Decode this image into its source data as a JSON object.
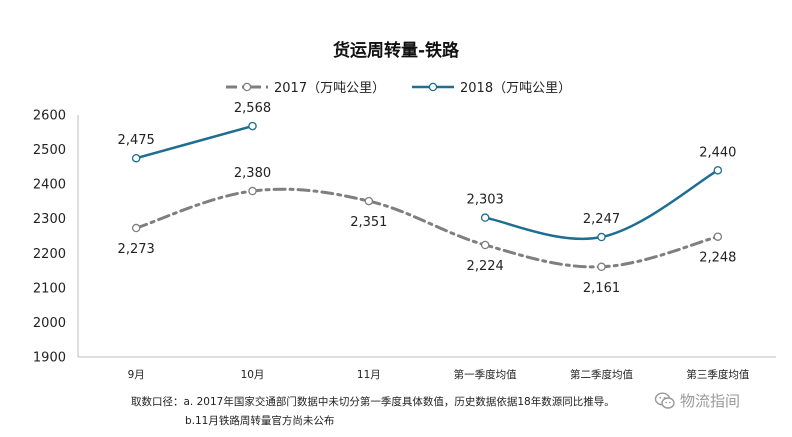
{
  "chart_data": {
    "type": "line",
    "title": "货运周转量-铁路",
    "categories": [
      "9月",
      "10月",
      "11月",
      "第一季度均值",
      "第二季度均值",
      "第三季度均值"
    ],
    "ylim": [
      1900,
      2600
    ],
    "yticks": [
      1900,
      2000,
      2100,
      2200,
      2300,
      2400,
      2500,
      2600
    ],
    "grid": false,
    "legend_position": "top",
    "series": [
      {
        "name": "2017（万吨公里）",
        "values": [
          2273,
          2380,
          2351,
          2224,
          2161,
          2248
        ],
        "labels": [
          "2,273",
          "2,380",
          "2,351",
          "2,224",
          "2,161",
          "2,248"
        ],
        "color": "#7f7f7f",
        "style": "dash-dot"
      },
      {
        "name": "2018（万吨公里）",
        "values": [
          2475,
          2568,
          null,
          2303,
          2247,
          2440
        ],
        "labels": [
          "2,475",
          "2,568",
          null,
          "2,303",
          "2,247",
          "2,440"
        ],
        "color": "#1f6d91",
        "style": "solid"
      }
    ]
  },
  "notes": {
    "line1": "取数口径：a. 2017年国家交通部门数据中未切分第一季度具体数值，历史数据依据18年数源同比推导。",
    "line2": "b.11月铁路周转量官方尚未公布"
  },
  "watermark": {
    "icon": "wechat-icon",
    "text": "物流指间"
  }
}
